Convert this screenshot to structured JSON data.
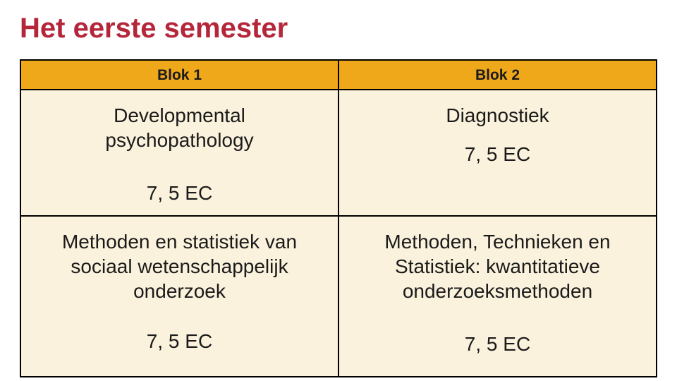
{
  "slide": {
    "title": "Het eerste semester",
    "title_color": "#b4263a",
    "title_fontsize": 40,
    "title_fontweight": 700
  },
  "table": {
    "type": "table",
    "columns": [
      "Blok 1",
      "Blok 2"
    ],
    "header_bg": "#f0a81b",
    "header_fontsize": 21,
    "header_fontweight": 700,
    "body_bg": "#faf2dc",
    "border_color": "#000000",
    "cell_fontsize": 28,
    "text_color": "#1a1a1a",
    "rows": [
      {
        "col1": {
          "course": "Developmental psychopathology",
          "ec": "7, 5 EC"
        },
        "col2": {
          "course": "Diagnostiek",
          "ec": "7, 5 EC"
        }
      },
      {
        "col1": {
          "course": "Methoden en statistiek van sociaal wetenschappelijk onderzoek",
          "ec": "7, 5 EC"
        },
        "col2": {
          "course": "Methoden, Technieken en Statistiek: kwantitatieve onderzoeksmethoden",
          "ec": "7, 5 EC"
        }
      }
    ]
  }
}
